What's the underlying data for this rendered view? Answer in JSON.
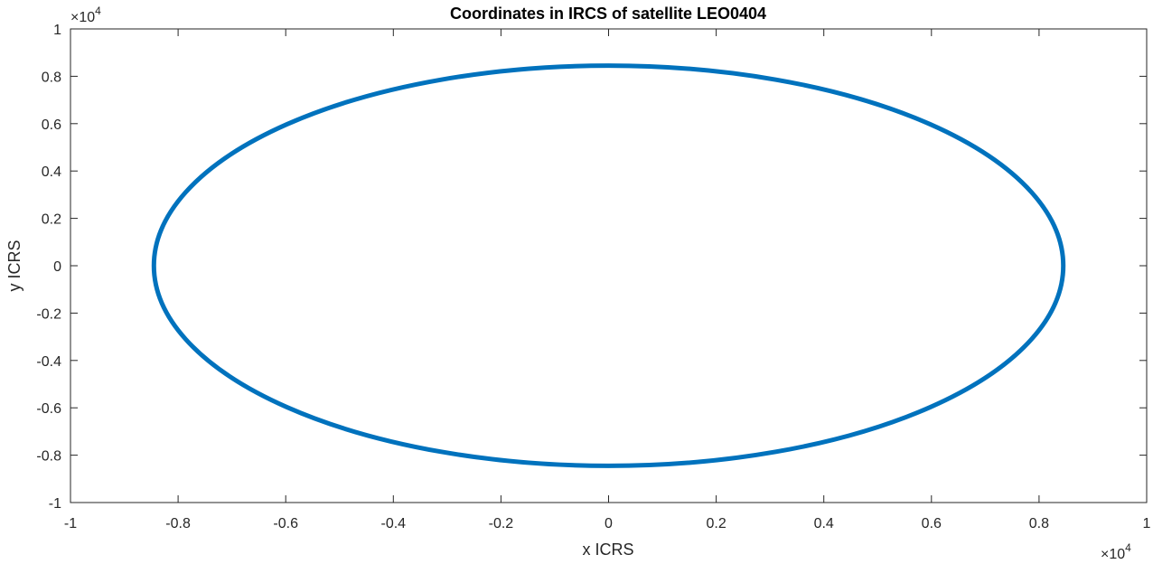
{
  "chart_data": {
    "type": "line",
    "title": "Coordinates in IRCS of satellite LEO0404",
    "xlabel": "x ICRS",
    "ylabel": "y ICRS",
    "xlim": [
      -1,
      1
    ],
    "ylim": [
      -1,
      1
    ],
    "x_ticks": [
      "-1",
      "-0.8",
      "-0.6",
      "-0.4",
      "-0.2",
      "0",
      "0.2",
      "0.4",
      "0.6",
      "0.8",
      "1"
    ],
    "y_ticks": [
      "1",
      "0.8",
      "0.6",
      "0.4",
      "0.2",
      "0",
      "-0.2",
      "-0.4",
      "-0.6",
      "-0.8",
      "-1"
    ],
    "x_exponent": {
      "base": "×10",
      "power": "4"
    },
    "y_exponent": {
      "base": "×10",
      "power": "4"
    },
    "grid": false,
    "series": [
      {
        "color": "#0072BD",
        "shape": "ellipse",
        "center": [
          0,
          0
        ],
        "semi_axis_x": 0.845,
        "semi_axis_y": 0.845
      }
    ]
  }
}
